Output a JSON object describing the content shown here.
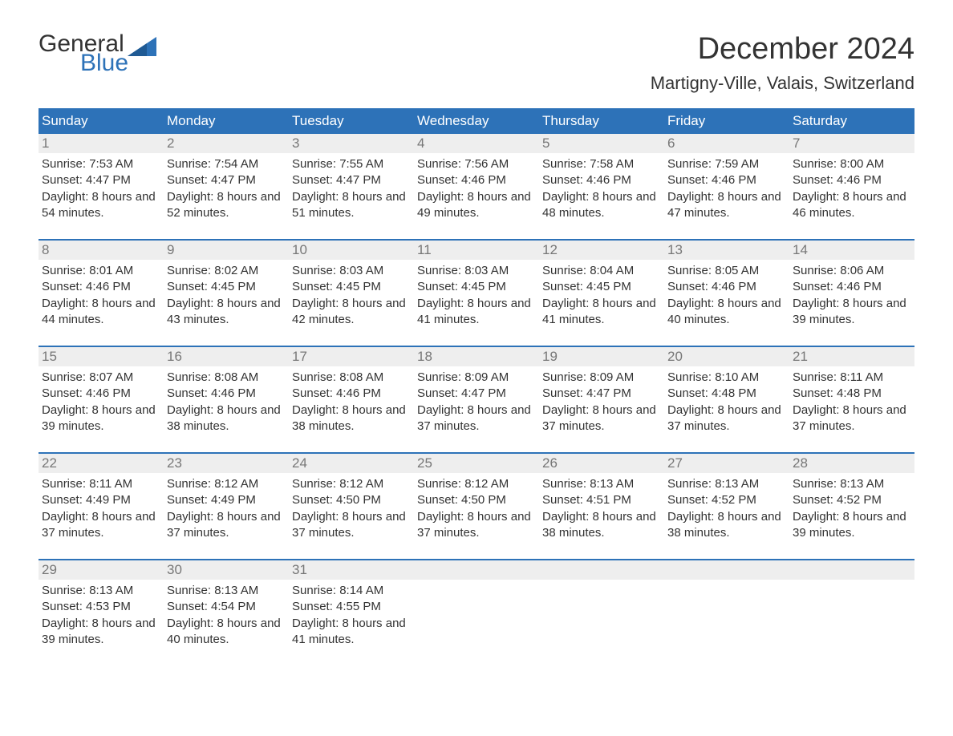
{
  "logo": {
    "line1": "General",
    "line2": "Blue"
  },
  "title": "December 2024",
  "location": "Martigny-Ville, Valais, Switzerland",
  "colors": {
    "header_bg": "#2d72b8",
    "header_text": "#ffffff",
    "daynum_bg": "#eeeeee",
    "daynum_text": "#777777",
    "body_text": "#333333",
    "week_divider": "#2d72b8",
    "page_bg": "#ffffff"
  },
  "days_of_week": [
    "Sunday",
    "Monday",
    "Tuesday",
    "Wednesday",
    "Thursday",
    "Friday",
    "Saturday"
  ],
  "weeks": [
    [
      {
        "num": "1",
        "sunrise": "Sunrise: 7:53 AM",
        "sunset": "Sunset: 4:47 PM",
        "daylight": "Daylight: 8 hours and 54 minutes."
      },
      {
        "num": "2",
        "sunrise": "Sunrise: 7:54 AM",
        "sunset": "Sunset: 4:47 PM",
        "daylight": "Daylight: 8 hours and 52 minutes."
      },
      {
        "num": "3",
        "sunrise": "Sunrise: 7:55 AM",
        "sunset": "Sunset: 4:47 PM",
        "daylight": "Daylight: 8 hours and 51 minutes."
      },
      {
        "num": "4",
        "sunrise": "Sunrise: 7:56 AM",
        "sunset": "Sunset: 4:46 PM",
        "daylight": "Daylight: 8 hours and 49 minutes."
      },
      {
        "num": "5",
        "sunrise": "Sunrise: 7:58 AM",
        "sunset": "Sunset: 4:46 PM",
        "daylight": "Daylight: 8 hours and 48 minutes."
      },
      {
        "num": "6",
        "sunrise": "Sunrise: 7:59 AM",
        "sunset": "Sunset: 4:46 PM",
        "daylight": "Daylight: 8 hours and 47 minutes."
      },
      {
        "num": "7",
        "sunrise": "Sunrise: 8:00 AM",
        "sunset": "Sunset: 4:46 PM",
        "daylight": "Daylight: 8 hours and 46 minutes."
      }
    ],
    [
      {
        "num": "8",
        "sunrise": "Sunrise: 8:01 AM",
        "sunset": "Sunset: 4:46 PM",
        "daylight": "Daylight: 8 hours and 44 minutes."
      },
      {
        "num": "9",
        "sunrise": "Sunrise: 8:02 AM",
        "sunset": "Sunset: 4:45 PM",
        "daylight": "Daylight: 8 hours and 43 minutes."
      },
      {
        "num": "10",
        "sunrise": "Sunrise: 8:03 AM",
        "sunset": "Sunset: 4:45 PM",
        "daylight": "Daylight: 8 hours and 42 minutes."
      },
      {
        "num": "11",
        "sunrise": "Sunrise: 8:03 AM",
        "sunset": "Sunset: 4:45 PM",
        "daylight": "Daylight: 8 hours and 41 minutes."
      },
      {
        "num": "12",
        "sunrise": "Sunrise: 8:04 AM",
        "sunset": "Sunset: 4:45 PM",
        "daylight": "Daylight: 8 hours and 41 minutes."
      },
      {
        "num": "13",
        "sunrise": "Sunrise: 8:05 AM",
        "sunset": "Sunset: 4:46 PM",
        "daylight": "Daylight: 8 hours and 40 minutes."
      },
      {
        "num": "14",
        "sunrise": "Sunrise: 8:06 AM",
        "sunset": "Sunset: 4:46 PM",
        "daylight": "Daylight: 8 hours and 39 minutes."
      }
    ],
    [
      {
        "num": "15",
        "sunrise": "Sunrise: 8:07 AM",
        "sunset": "Sunset: 4:46 PM",
        "daylight": "Daylight: 8 hours and 39 minutes."
      },
      {
        "num": "16",
        "sunrise": "Sunrise: 8:08 AM",
        "sunset": "Sunset: 4:46 PM",
        "daylight": "Daylight: 8 hours and 38 minutes."
      },
      {
        "num": "17",
        "sunrise": "Sunrise: 8:08 AM",
        "sunset": "Sunset: 4:46 PM",
        "daylight": "Daylight: 8 hours and 38 minutes."
      },
      {
        "num": "18",
        "sunrise": "Sunrise: 8:09 AM",
        "sunset": "Sunset: 4:47 PM",
        "daylight": "Daylight: 8 hours and 37 minutes."
      },
      {
        "num": "19",
        "sunrise": "Sunrise: 8:09 AM",
        "sunset": "Sunset: 4:47 PM",
        "daylight": "Daylight: 8 hours and 37 minutes."
      },
      {
        "num": "20",
        "sunrise": "Sunrise: 8:10 AM",
        "sunset": "Sunset: 4:48 PM",
        "daylight": "Daylight: 8 hours and 37 minutes."
      },
      {
        "num": "21",
        "sunrise": "Sunrise: 8:11 AM",
        "sunset": "Sunset: 4:48 PM",
        "daylight": "Daylight: 8 hours and 37 minutes."
      }
    ],
    [
      {
        "num": "22",
        "sunrise": "Sunrise: 8:11 AM",
        "sunset": "Sunset: 4:49 PM",
        "daylight": "Daylight: 8 hours and 37 minutes."
      },
      {
        "num": "23",
        "sunrise": "Sunrise: 8:12 AM",
        "sunset": "Sunset: 4:49 PM",
        "daylight": "Daylight: 8 hours and 37 minutes."
      },
      {
        "num": "24",
        "sunrise": "Sunrise: 8:12 AM",
        "sunset": "Sunset: 4:50 PM",
        "daylight": "Daylight: 8 hours and 37 minutes."
      },
      {
        "num": "25",
        "sunrise": "Sunrise: 8:12 AM",
        "sunset": "Sunset: 4:50 PM",
        "daylight": "Daylight: 8 hours and 37 minutes."
      },
      {
        "num": "26",
        "sunrise": "Sunrise: 8:13 AM",
        "sunset": "Sunset: 4:51 PM",
        "daylight": "Daylight: 8 hours and 38 minutes."
      },
      {
        "num": "27",
        "sunrise": "Sunrise: 8:13 AM",
        "sunset": "Sunset: 4:52 PM",
        "daylight": "Daylight: 8 hours and 38 minutes."
      },
      {
        "num": "28",
        "sunrise": "Sunrise: 8:13 AM",
        "sunset": "Sunset: 4:52 PM",
        "daylight": "Daylight: 8 hours and 39 minutes."
      }
    ],
    [
      {
        "num": "29",
        "sunrise": "Sunrise: 8:13 AM",
        "sunset": "Sunset: 4:53 PM",
        "daylight": "Daylight: 8 hours and 39 minutes."
      },
      {
        "num": "30",
        "sunrise": "Sunrise: 8:13 AM",
        "sunset": "Sunset: 4:54 PM",
        "daylight": "Daylight: 8 hours and 40 minutes."
      },
      {
        "num": "31",
        "sunrise": "Sunrise: 8:14 AM",
        "sunset": "Sunset: 4:55 PM",
        "daylight": "Daylight: 8 hours and 41 minutes."
      },
      null,
      null,
      null,
      null
    ]
  ]
}
